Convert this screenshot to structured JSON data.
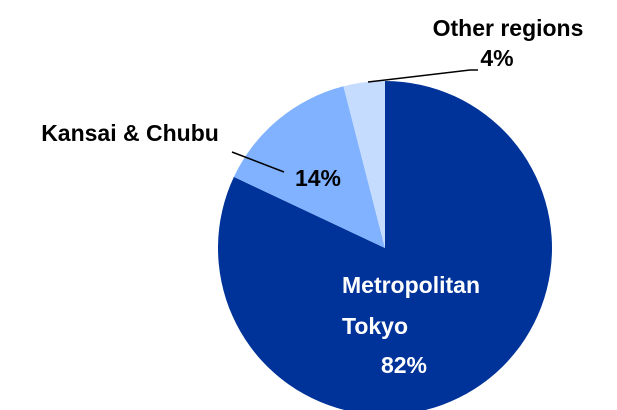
{
  "chart_data": {
    "type": "pie",
    "categories": [
      "Metropolitan Tokyo",
      "Kansai & Chubu",
      "Other regions"
    ],
    "values": [
      82,
      14,
      4
    ],
    "value_labels": [
      "82%",
      "14%",
      "4%"
    ],
    "colors": [
      "#003399",
      "#80b2ff",
      "#c6dcff"
    ]
  }
}
